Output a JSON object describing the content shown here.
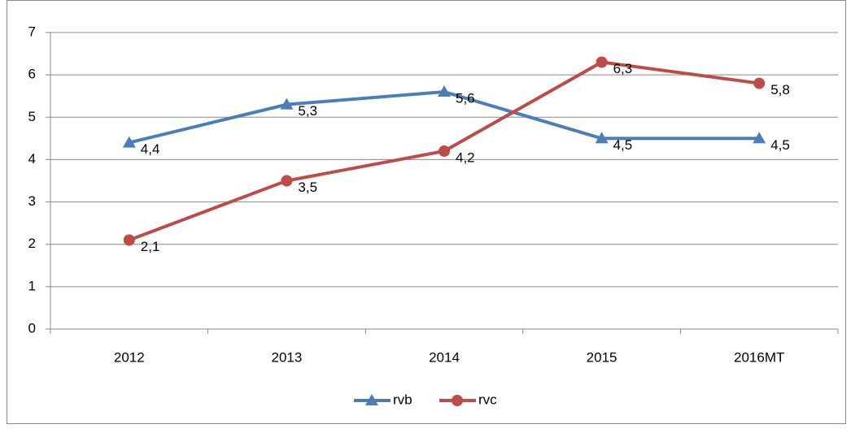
{
  "chart_data": {
    "type": "line",
    "categories": [
      "2012",
      "2013",
      "2014",
      "2015",
      "2016MT"
    ],
    "series": [
      {
        "name": "rvb",
        "color": "#4a7ebb",
        "marker": "triangle",
        "values": [
          4.4,
          5.3,
          5.6,
          4.5,
          4.5
        ],
        "value_labels": [
          "4,4",
          "5,3",
          "5,6",
          "4,5",
          "4,5"
        ]
      },
      {
        "name": "rvc",
        "color": "#be4b48",
        "marker": "circle",
        "values": [
          2.1,
          3.5,
          4.2,
          6.3,
          5.8
        ],
        "value_labels": [
          "2,1",
          "3,5",
          "4,2",
          "6,3",
          "5,8"
        ]
      }
    ],
    "ylim": [
      0,
      7
    ],
    "yticks": [
      0,
      1,
      2,
      3,
      4,
      5,
      6,
      7
    ],
    "grid": true,
    "legend": "bottom"
  }
}
